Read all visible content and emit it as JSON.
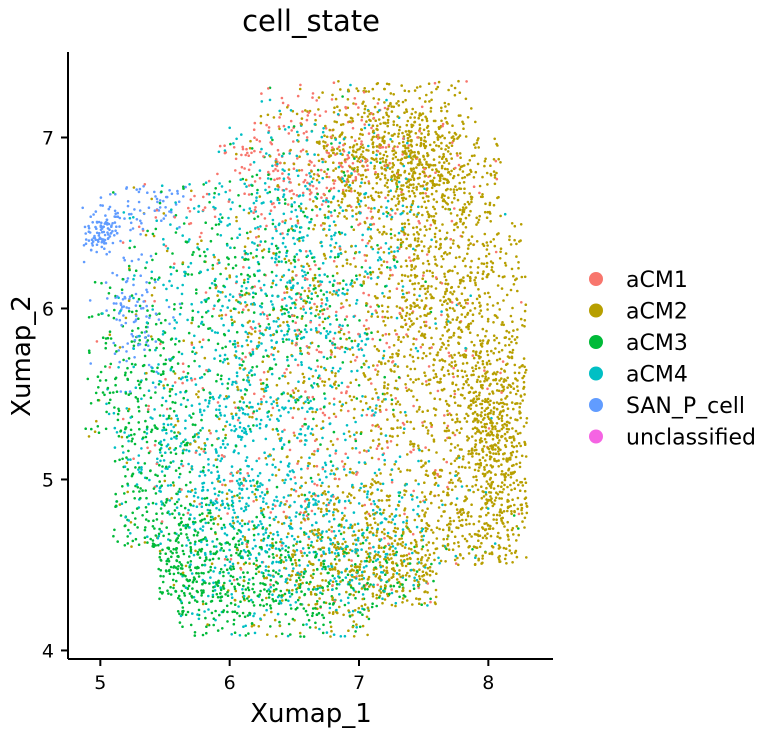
{
  "chart_data": {
    "type": "scatter",
    "title": "cell_state",
    "xlabel": "Xumap_1",
    "ylabel": "Xumap_2",
    "xlim": [
      4.75,
      8.5
    ],
    "ylim": [
      3.95,
      7.5
    ],
    "xticks": [
      "5",
      "6",
      "7",
      "8"
    ],
    "yticks": [
      "4",
      "5",
      "6",
      "7"
    ],
    "grid": false,
    "legend_position": "right",
    "series": [
      {
        "name": "aCM1",
        "color": "#F8766D",
        "regions": [
          {
            "cx": 6.6,
            "cy": 6.9,
            "sx": 0.5,
            "sy": 0.2
          },
          {
            "cx": 6.8,
            "cy": 6.2,
            "sx": 0.7,
            "sy": 0.6
          },
          {
            "cx": 6.7,
            "cy": 5.2,
            "sx": 0.7,
            "sy": 0.6
          }
        ],
        "points": 700
      },
      {
        "name": "aCM2",
        "color": "#B79F00",
        "regions": [
          {
            "cx": 7.3,
            "cy": 6.9,
            "sx": 0.4,
            "sy": 0.22
          },
          {
            "cx": 7.7,
            "cy": 6.1,
            "sx": 0.35,
            "sy": 0.5
          },
          {
            "cx": 8.05,
            "cy": 5.2,
            "sx": 0.2,
            "sy": 0.4
          },
          {
            "cx": 7.2,
            "cy": 4.5,
            "sx": 0.5,
            "sy": 0.25
          },
          {
            "cx": 6.8,
            "cy": 5.6,
            "sx": 0.8,
            "sy": 0.7
          }
        ],
        "points": 3600
      },
      {
        "name": "aCM3",
        "color": "#00BA38",
        "regions": [
          {
            "cx": 5.7,
            "cy": 4.5,
            "sx": 0.3,
            "sy": 0.2
          },
          {
            "cx": 6.5,
            "cy": 4.4,
            "sx": 0.6,
            "sy": 0.2
          },
          {
            "cx": 5.3,
            "cy": 5.3,
            "sx": 0.25,
            "sy": 0.5
          },
          {
            "cx": 6.3,
            "cy": 6.0,
            "sx": 0.5,
            "sy": 0.5
          }
        ],
        "points": 1400
      },
      {
        "name": "aCM4",
        "color": "#00BFC4",
        "regions": [
          {
            "cx": 6.3,
            "cy": 5.5,
            "sx": 0.55,
            "sy": 0.6
          },
          {
            "cx": 5.8,
            "cy": 5.0,
            "sx": 0.4,
            "sy": 0.4
          },
          {
            "cx": 6.8,
            "cy": 4.6,
            "sx": 0.5,
            "sy": 0.3
          },
          {
            "cx": 6.5,
            "cy": 6.4,
            "sx": 0.5,
            "sy": 0.4
          }
        ],
        "points": 1700
      },
      {
        "name": "SAN_P_cell",
        "color": "#619CFF",
        "regions": [
          {
            "cx": 5.0,
            "cy": 6.45,
            "sx": 0.08,
            "sy": 0.07
          },
          {
            "cx": 5.35,
            "cy": 6.6,
            "sx": 0.2,
            "sy": 0.07
          },
          {
            "cx": 5.25,
            "cy": 5.95,
            "sx": 0.12,
            "sy": 0.2
          }
        ],
        "points": 260
      },
      {
        "name": "unclassified",
        "color": "#F564E3",
        "regions": [],
        "points": 0
      }
    ]
  }
}
